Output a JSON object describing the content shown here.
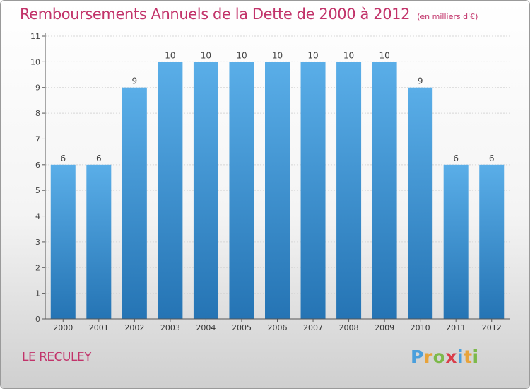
{
  "chart_data": {
    "type": "bar",
    "title": "Remboursements Annuels de la Dette de 2000 à 2012",
    "subtitle": "(en milliers d'€)",
    "categories": [
      "2000",
      "2001",
      "2002",
      "2003",
      "2004",
      "2005",
      "2006",
      "2007",
      "2008",
      "2009",
      "2010",
      "2011",
      "2012"
    ],
    "values": [
      6,
      6,
      9,
      10,
      10,
      10,
      10,
      10,
      10,
      10,
      9,
      6,
      6
    ],
    "value_labels": [
      "6",
      "6",
      "9",
      "10",
      "10",
      "10",
      "10",
      "10",
      "10",
      "10",
      "9",
      "6",
      "6"
    ],
    "yticks": [
      "0",
      "1",
      "2",
      "3",
      "4",
      "5",
      "6",
      "7",
      "8",
      "9",
      "10",
      "11"
    ],
    "ylim": [
      0,
      11
    ],
    "xlabel": "",
    "ylabel": "",
    "grid": true,
    "legend": "none",
    "colors": {
      "bar_top": "#5aaee8",
      "bar_bottom": "#2574b4",
      "grid": "#d6d6d6",
      "axis": "#555555"
    }
  },
  "commune": "LE RECULEY",
  "logo": {
    "letters": [
      "P",
      "r",
      "o",
      "x",
      "i",
      "t",
      "i"
    ],
    "colors": [
      "#4a9fdc",
      "#e8a33a",
      "#7db94a",
      "#d93d4a",
      "#4a9fdc",
      "#e8a33a",
      "#7db94a"
    ]
  }
}
